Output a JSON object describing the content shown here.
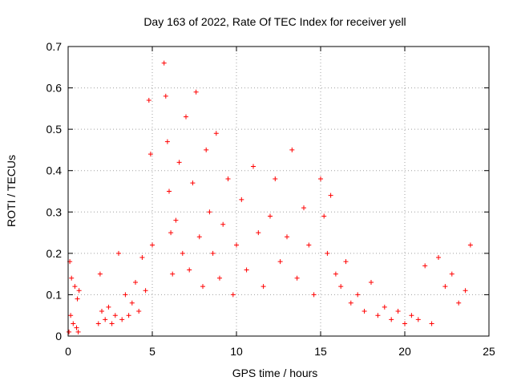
{
  "chart_data": {
    "type": "scatter",
    "title": "Day 163 of 2022, Rate Of TEC Index for receiver yell",
    "xlabel": "GPS time / hours",
    "ylabel": "ROTI / TECUs",
    "xlim": [
      0,
      25
    ],
    "ylim": [
      0,
      0.7
    ],
    "xticks": [
      "0",
      "5",
      "10",
      "15",
      "20",
      "25"
    ],
    "yticks": [
      "0",
      "0.1",
      "0.2",
      "0.3",
      "0.4",
      "0.5",
      "0.6",
      "0.7"
    ],
    "grid": true,
    "marker": "plus",
    "color": "#ff0000",
    "x": [
      0.05,
      0.1,
      0.15,
      0.2,
      0.3,
      0.4,
      0.5,
      0.55,
      0.6,
      0.65,
      1.8,
      1.9,
      2.0,
      2.2,
      2.4,
      2.6,
      2.8,
      3.0,
      3.2,
      3.4,
      3.6,
      3.8,
      4.0,
      4.2,
      4.4,
      4.6,
      4.8,
      4.9,
      5.0,
      5.7,
      5.8,
      5.9,
      6.0,
      6.1,
      6.2,
      6.4,
      6.6,
      6.8,
      7.0,
      7.2,
      7.4,
      7.6,
      7.8,
      8.0,
      8.2,
      8.4,
      8.6,
      8.8,
      9.0,
      9.2,
      9.5,
      9.8,
      10.0,
      10.3,
      10.6,
      11.0,
      11.3,
      11.6,
      12.0,
      12.3,
      12.6,
      13.0,
      13.3,
      13.6,
      14.0,
      14.3,
      14.6,
      15.0,
      15.2,
      15.4,
      15.6,
      15.9,
      16.2,
      16.5,
      16.8,
      17.2,
      17.6,
      18.0,
      18.4,
      18.8,
      19.2,
      19.6,
      20.0,
      20.4,
      20.8,
      21.2,
      21.6,
      22.0,
      22.4,
      22.8,
      23.2,
      23.6,
      23.9
    ],
    "y": [
      0.01,
      0.18,
      0.05,
      0.14,
      0.03,
      0.12,
      0.02,
      0.09,
      0.01,
      0.11,
      0.03,
      0.15,
      0.06,
      0.04,
      0.07,
      0.03,
      0.05,
      0.2,
      0.04,
      0.1,
      0.05,
      0.08,
      0.13,
      0.06,
      0.19,
      0.11,
      0.57,
      0.44,
      0.22,
      0.66,
      0.58,
      0.47,
      0.35,
      0.25,
      0.15,
      0.28,
      0.42,
      0.2,
      0.53,
      0.16,
      0.37,
      0.59,
      0.24,
      0.12,
      0.45,
      0.3,
      0.2,
      0.49,
      0.14,
      0.27,
      0.38,
      0.1,
      0.22,
      0.33,
      0.16,
      0.41,
      0.25,
      0.12,
      0.29,
      0.38,
      0.18,
      0.24,
      0.45,
      0.14,
      0.31,
      0.22,
      0.1,
      0.38,
      0.29,
      0.2,
      0.34,
      0.15,
      0.12,
      0.18,
      0.08,
      0.1,
      0.06,
      0.13,
      0.05,
      0.07,
      0.04,
      0.06,
      0.03,
      0.05,
      0.04,
      0.17,
      0.03,
      0.19,
      0.12,
      0.15,
      0.08,
      0.11,
      0.22
    ]
  }
}
